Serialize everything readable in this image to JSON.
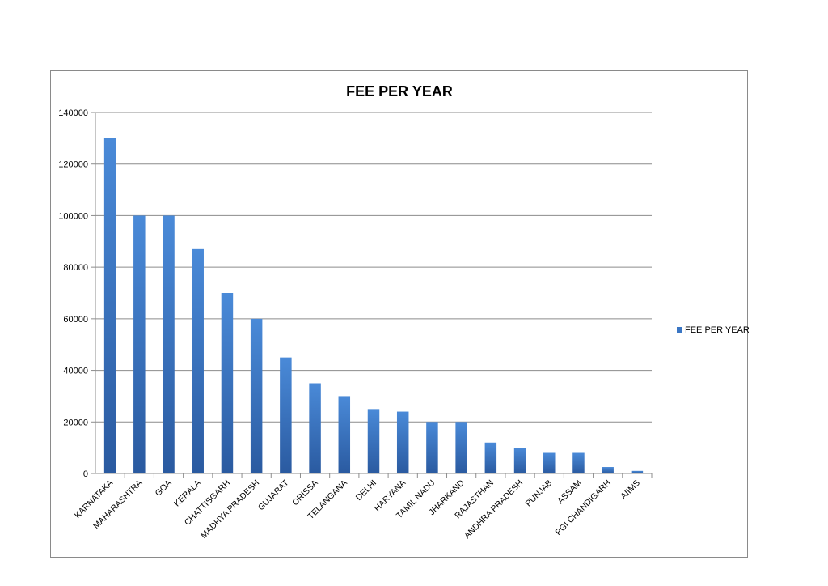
{
  "chart_data": {
    "type": "bar",
    "title": "FEE PER YEAR",
    "xlabel": "",
    "ylabel": "",
    "ylim": [
      0,
      140000
    ],
    "yticks": [
      0,
      20000,
      40000,
      60000,
      80000,
      100000,
      120000,
      140000
    ],
    "grid": true,
    "legend_position": "right",
    "categories": [
      "KARNATAKA",
      "MAHARASHTRA",
      "GOA",
      "KERALA",
      "CHATTISGARH",
      "MADHYA PRADESH",
      "GUJARAT",
      "ORISSA",
      "TELANGANA",
      "DELHI",
      "HARYANA",
      "TAMIL NADU",
      "JHARKAND",
      "RAJASTHAN",
      "ANDHRA PRADESH",
      "PUNJAB",
      "ASSAM",
      "PGI CHANDIGARH",
      "AIIMS"
    ],
    "series": [
      {
        "name": "FEE PER YEAR",
        "color": "#3a76c4",
        "values": [
          130000,
          100000,
          100000,
          87000,
          70000,
          60000,
          45000,
          35000,
          30000,
          25000,
          24000,
          20000,
          20000,
          12000,
          10000,
          8000,
          8000,
          2500,
          1000
        ]
      }
    ]
  }
}
